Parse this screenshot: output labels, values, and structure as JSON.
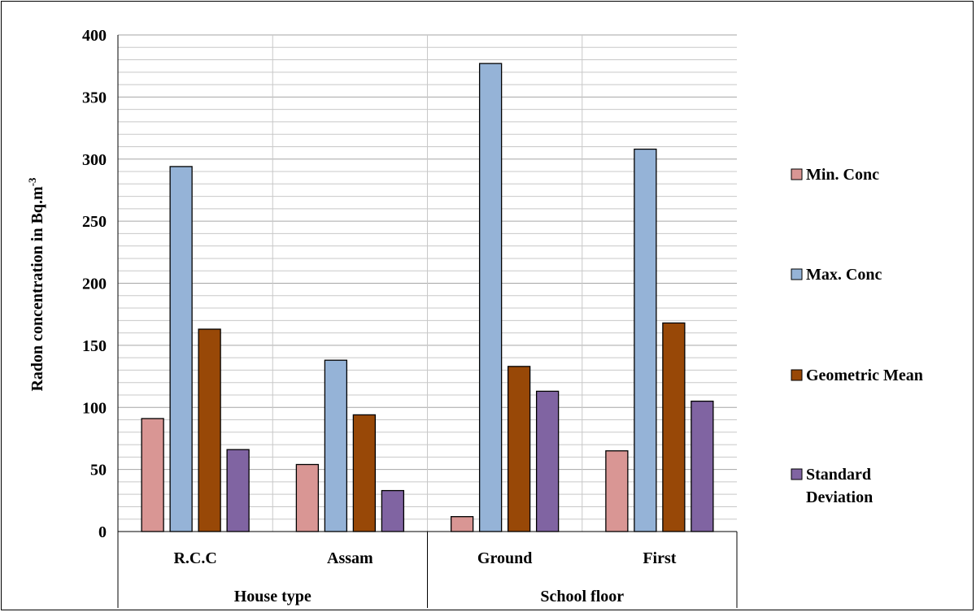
{
  "chart_data": {
    "type": "bar",
    "categories": [
      "R.C.C",
      "Assam",
      "Ground",
      "First"
    ],
    "groups": [
      {
        "label": "House type",
        "categories": [
          "R.C.C",
          "Assam"
        ]
      },
      {
        "label": "School floor",
        "categories": [
          "Ground",
          "First"
        ]
      }
    ],
    "series": [
      {
        "name": "Min. Conc",
        "color": "#d99694",
        "values": [
          91,
          54,
          12,
          65
        ]
      },
      {
        "name": "Max. Conc",
        "color": "#95b3d7",
        "values": [
          294,
          138,
          377,
          308
        ]
      },
      {
        "name": "Geometric Mean",
        "color": "#984807",
        "values": [
          163,
          94,
          133,
          168
        ]
      },
      {
        "name": "Standard\nDeviation",
        "color": "#8064a2",
        "values": [
          66,
          33,
          113,
          105
        ]
      }
    ],
    "ylabel": "Radon concentration in Bq.m",
    "ylabel_sup": "-3",
    "ylim": [
      0,
      400
    ],
    "yticks": [
      0,
      50,
      100,
      150,
      200,
      250,
      300,
      350,
      400
    ],
    "minor_gridlines_step": 10,
    "legend_position": "right"
  }
}
